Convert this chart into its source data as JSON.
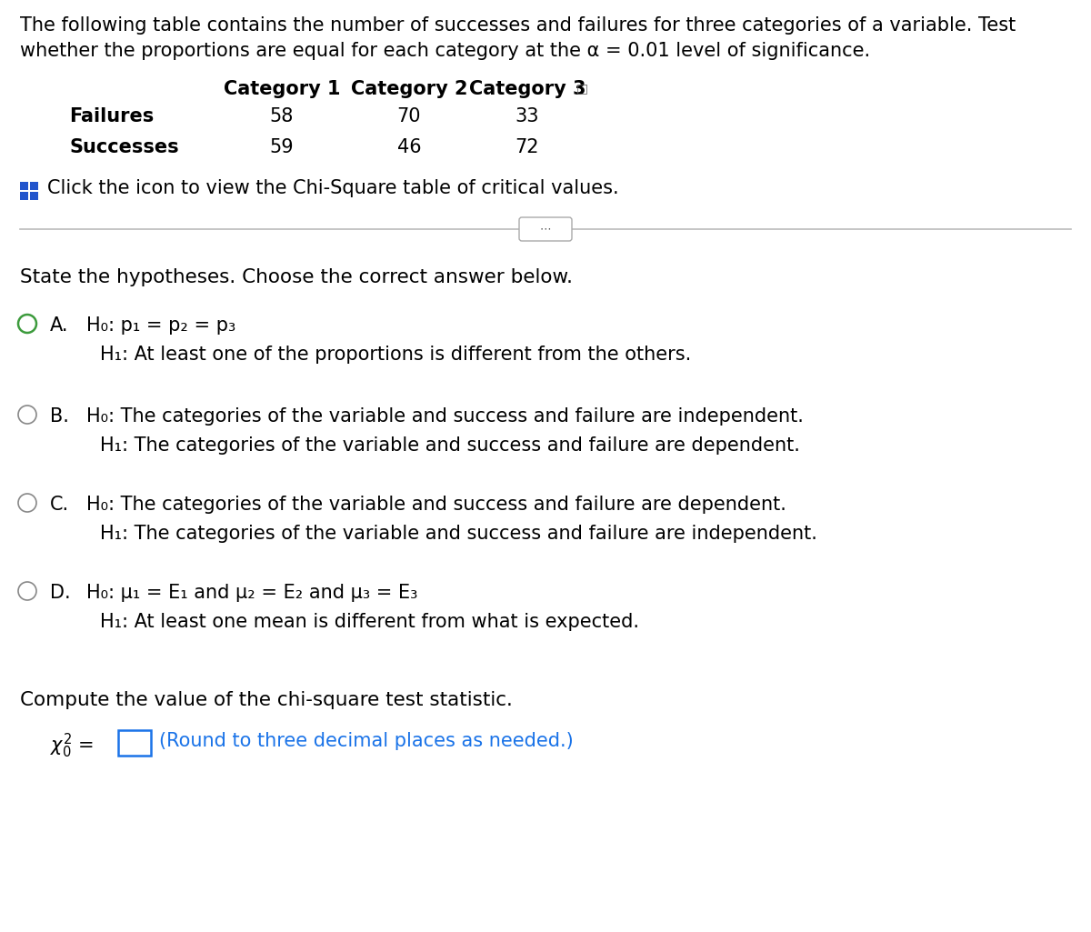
{
  "bg_color": "#ffffff",
  "text_color": "#000000",
  "intro_line1": "The following table contains the number of successes and failures for three categories of a variable. Test",
  "intro_line2": "whether the proportions are equal for each category at the α = 0.01 level of significance.",
  "table_headers": [
    "Category 1",
    "Category 2",
    "Category 3"
  ],
  "table_rows": [
    {
      "label": "Failures",
      "values": [
        58,
        70,
        33
      ]
    },
    {
      "label": "Successes",
      "values": [
        59,
        46,
        72
      ]
    }
  ],
  "click_text": "Click the icon to view the Chi-Square table of critical values.",
  "state_hypotheses_text": "State the hypotheses. Choose the correct answer below.",
  "options": [
    {
      "letter": "A.",
      "selected": true,
      "h0": "H₀: p₁ = p₂ = p₃",
      "h1": "H₁: At least one of the proportions is different from the others."
    },
    {
      "letter": "B.",
      "selected": false,
      "h0": "H₀: The categories of the variable and success and failure are independent.",
      "h1": "H₁: The categories of the variable and success and failure are dependent."
    },
    {
      "letter": "C.",
      "selected": false,
      "h0": "H₀: The categories of the variable and success and failure are dependent.",
      "h1": "H₁: The categories of the variable and success and failure are independent."
    },
    {
      "letter": "D.",
      "selected": false,
      "h0": "H₀: μ₁ = E₁ and μ₂ = E₂ and μ₃ = E₃",
      "h1": "H₁: At least one mean is different from what is expected."
    }
  ],
  "compute_text": "Compute the value of the chi-square test statistic.",
  "chi_square_hint": "(Round to three decimal places as needed.)",
  "green_color": "#3d9b3d",
  "link_color": "#1a73e8",
  "box_color": "#1a73e8",
  "radio_color": "#888888",
  "separator_color": "#bbbbbb",
  "icon_blue": "#2255cc"
}
